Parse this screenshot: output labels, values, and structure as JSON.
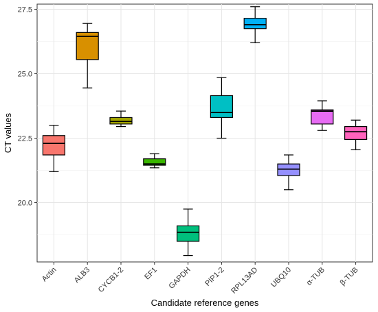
{
  "chart_data": {
    "type": "boxplot",
    "xlabel": "Candidate reference genes",
    "ylabel": "CT values",
    "ylim": [
      17.7,
      27.7
    ],
    "yticks": [
      "20.0",
      "22.5",
      "25.0",
      "27.5"
    ],
    "ytick_values": [
      20.0,
      22.5,
      25.0,
      27.5
    ],
    "grid": true,
    "categories": [
      "Actin",
      "ALB3",
      "CYCB1-2",
      "EF1",
      "GAPDH",
      "PIP1-2",
      "RPL13AD",
      "UBQ10",
      "α-TUB",
      "β-TUB"
    ],
    "boxes": [
      {
        "whisker_low": 21.2,
        "q1": 21.85,
        "median": 22.3,
        "q3": 22.6,
        "whisker_high": 23.0,
        "color": "#f8766d"
      },
      {
        "whisker_low": 24.45,
        "q1": 25.55,
        "median": 26.45,
        "q3": 26.6,
        "whisker_high": 26.95,
        "color": "#d89000"
      },
      {
        "whisker_low": 22.95,
        "q1": 23.05,
        "median": 23.15,
        "q3": 23.3,
        "whisker_high": 23.55,
        "color": "#a3a500"
      },
      {
        "whisker_low": 21.35,
        "q1": 21.45,
        "median": 21.5,
        "q3": 21.7,
        "whisker_high": 21.9,
        "color": "#39b600"
      },
      {
        "whisker_low": 17.95,
        "q1": 18.5,
        "median": 18.85,
        "q3": 19.1,
        "whisker_high": 19.75,
        "color": "#00bf7d"
      },
      {
        "whisker_low": 22.5,
        "q1": 23.3,
        "median": 23.5,
        "q3": 24.15,
        "whisker_high": 24.85,
        "color": "#00bfc4"
      },
      {
        "whisker_low": 26.2,
        "q1": 26.75,
        "median": 26.9,
        "q3": 27.15,
        "whisker_high": 27.6,
        "color": "#00b0f6"
      },
      {
        "whisker_low": 20.5,
        "q1": 21.05,
        "median": 21.3,
        "q3": 21.5,
        "whisker_high": 21.85,
        "color": "#9590ff"
      },
      {
        "whisker_low": 22.8,
        "q1": 23.05,
        "median": 23.55,
        "q3": 23.6,
        "whisker_high": 23.95,
        "color": "#e76bf3"
      },
      {
        "whisker_low": 22.05,
        "q1": 22.45,
        "median": 22.75,
        "q3": 22.95,
        "whisker_high": 23.2,
        "color": "#ff62bc"
      }
    ]
  }
}
